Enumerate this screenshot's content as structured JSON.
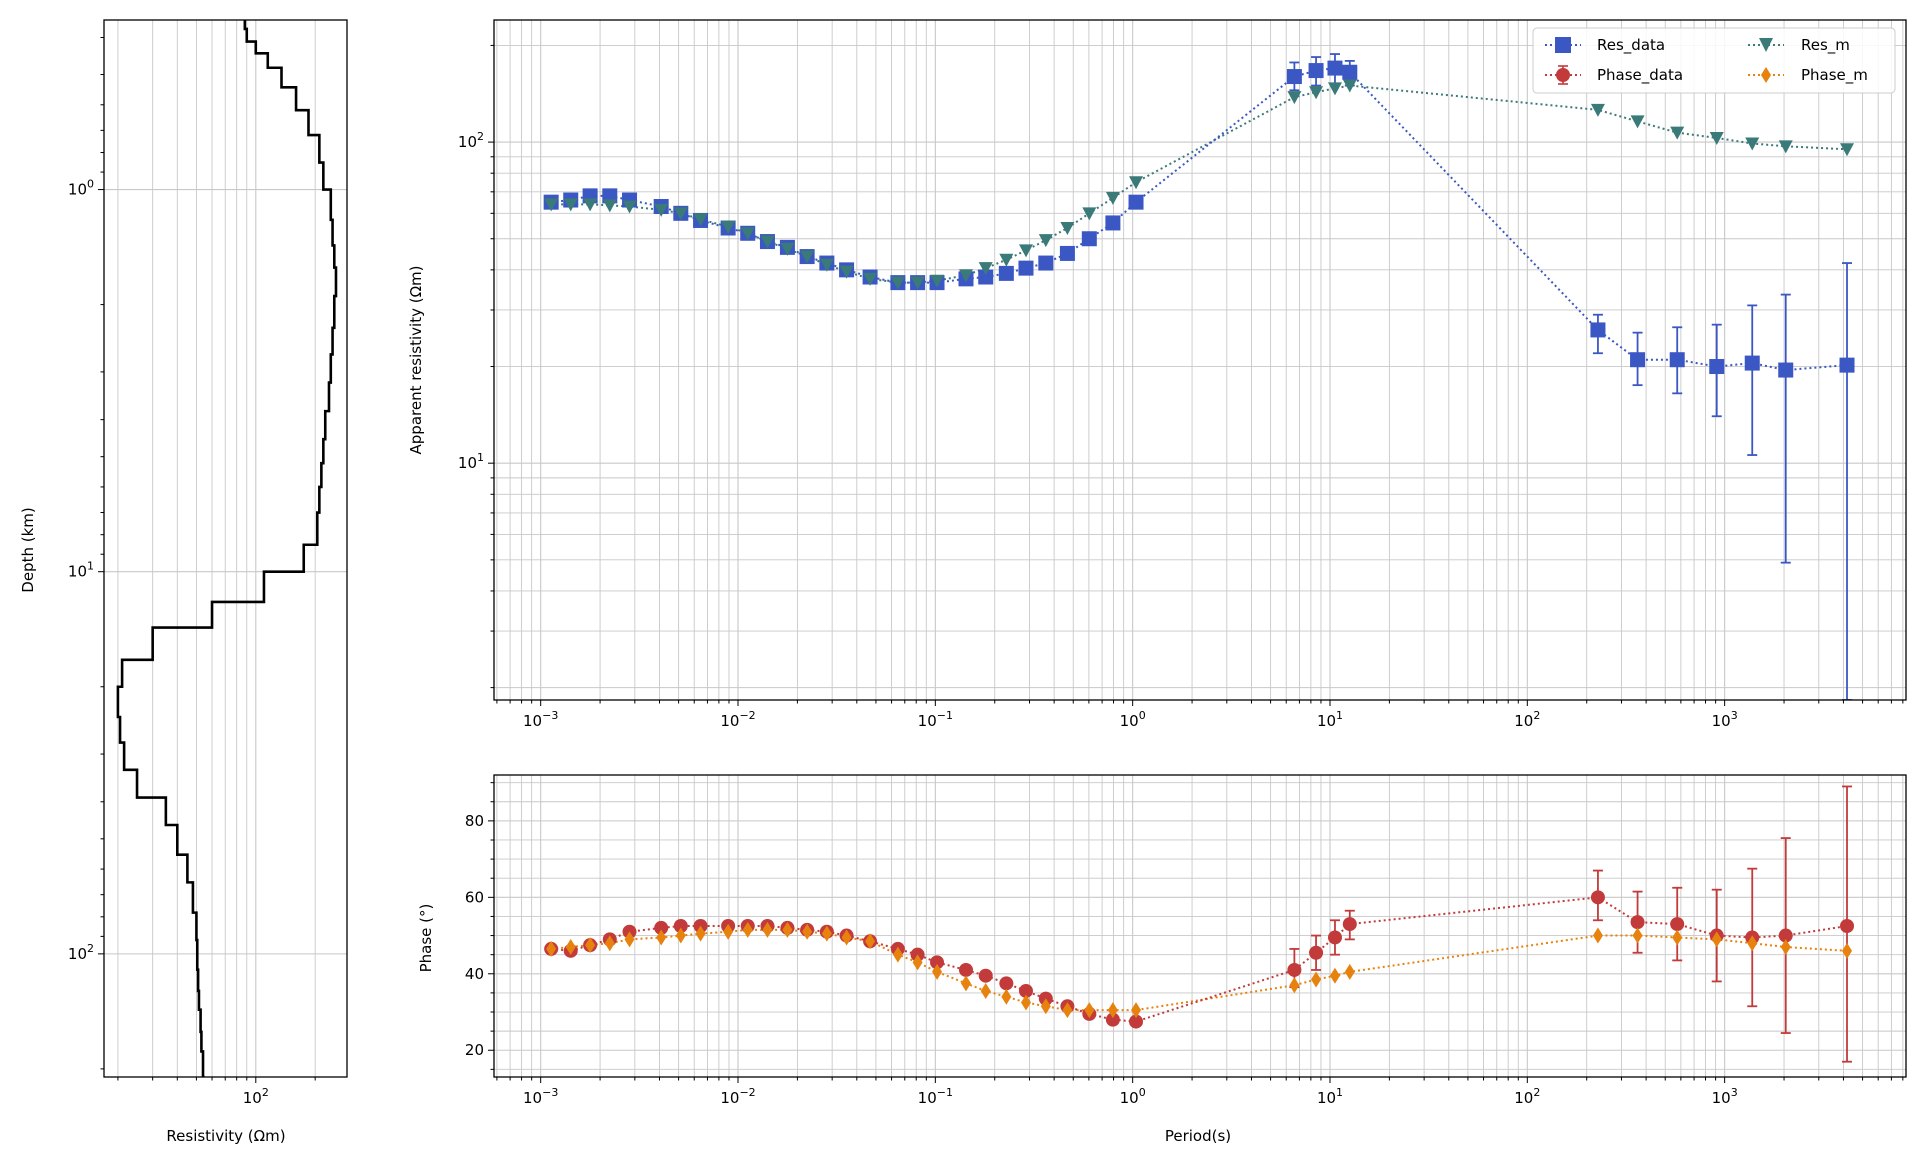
{
  "colors": {
    "res_data": "#3b57c4",
    "res_m": "#3a7a78",
    "phase_data": "#c23a3a",
    "phase_m": "#e8820e",
    "profile": "#000000",
    "grid": "#c8c8c8"
  },
  "chart_data": [
    {
      "name": "resistivity-depth-profile",
      "type": "line",
      "xlabel": "Resistivity (Ωm)",
      "ylabel": "Depth (km)",
      "xscale": "log",
      "yscale": "log",
      "yinverted": true,
      "xlim": [
        17,
        290
      ],
      "ylim": [
        0.36,
        210
      ],
      "xticks": [
        {
          "value": 100,
          "label": "10",
          "exp": "2"
        }
      ],
      "yticks": [
        {
          "value": 1,
          "label": "10",
          "exp": "0"
        },
        {
          "value": 10,
          "label": "10",
          "exp": "1"
        },
        {
          "value": 100,
          "label": "10",
          "exp": "2"
        }
      ],
      "grid": true,
      "series": [
        {
          "style": "step",
          "color": "#000000",
          "resistivity": [
            88,
            90,
            100,
            115,
            135,
            160,
            185,
            210,
            220,
            240,
            245,
            250,
            255,
            250,
            245,
            240,
            235,
            225,
            220,
            215,
            210,
            205,
            175,
            110,
            60,
            30,
            21,
            20,
            20.5,
            21.5,
            25,
            35,
            40,
            45,
            48,
            50,
            50.5,
            51,
            51.5,
            52.5,
            53,
            54,
            55
          ],
          "depth": [
            0.36,
            0.38,
            0.41,
            0.44,
            0.48,
            0.54,
            0.62,
            0.72,
            0.85,
            1.0,
            1.2,
            1.4,
            1.6,
            1.9,
            2.3,
            2.7,
            3.2,
            3.8,
            4.5,
            5.2,
            6.0,
            7.0,
            8.5,
            10.0,
            12.0,
            14.0,
            17.0,
            20.0,
            24.0,
            28.0,
            33.0,
            39.0,
            46.0,
            55.0,
            65.0,
            78.0,
            92.0,
            110.0,
            125.0,
            140.0,
            160.0,
            180.0,
            210.0
          ]
        }
      ]
    },
    {
      "name": "apparent-resistivity",
      "type": "scatter",
      "ylabel": "Apparent resistivity (Ωm)",
      "xscale": "log",
      "yscale": "log",
      "xlim": [
        0.00058,
        8300
      ],
      "ylim": [
        1.83,
        240
      ],
      "xticks": [
        {
          "value": 0.001,
          "label": "10",
          "exp": "−3"
        },
        {
          "value": 0.01,
          "label": "10",
          "exp": "−2"
        },
        {
          "value": 0.1,
          "label": "10",
          "exp": "−1"
        },
        {
          "value": 1,
          "label": "10",
          "exp": "0"
        },
        {
          "value": 10,
          "label": "10",
          "exp": "1"
        },
        {
          "value": 100,
          "label": "10",
          "exp": "2"
        },
        {
          "value": 1000,
          "label": "10",
          "exp": "3"
        }
      ],
      "yticks": [
        {
          "value": 10,
          "label": "10",
          "exp": "1"
        },
        {
          "value": 100,
          "label": "10",
          "exp": "2"
        }
      ],
      "grid": true,
      "legend": {
        "placement": "top-right",
        "columns": 2
      },
      "series": [
        {
          "name": "Res_data",
          "marker": "square",
          "color": "#3b57c4",
          "x": [
            0.00113,
            0.00142,
            0.00178,
            0.00224,
            0.00282,
            0.00408,
            0.00513,
            0.00646,
            0.00891,
            0.0112,
            0.0141,
            0.0178,
            0.0224,
            0.0282,
            0.0355,
            0.0467,
            0.0646,
            0.0813,
            0.102,
            0.143,
            0.18,
            0.229,
            0.288,
            0.363,
            0.467,
            0.603,
            0.794,
            1.04,
            6.6,
            8.5,
            10.6,
            12.6,
            228,
            362,
            575,
            912,
            1380,
            2040,
            4170
          ],
          "y": [
            65,
            66,
            68,
            68,
            66,
            63,
            60,
            57,
            54,
            52,
            49,
            47,
            44,
            42,
            40,
            38,
            36.5,
            36.5,
            36.5,
            37.5,
            38,
            39,
            40.5,
            42,
            45,
            50,
            56,
            65,
            160,
            167,
            170,
            165,
            26,
            21,
            21,
            20,
            20.5,
            19.5,
            20.2
          ],
          "yerr_low": [
            null,
            null,
            null,
            null,
            null,
            null,
            null,
            null,
            null,
            null,
            null,
            null,
            null,
            null,
            null,
            null,
            null,
            null,
            null,
            null,
            null,
            null,
            null,
            null,
            null,
            null,
            null,
            null,
            145,
            150,
            152,
            150,
            22,
            17.5,
            16.5,
            14,
            10.6,
            4.9,
            1.83
          ],
          "yerr_high": [
            null,
            null,
            null,
            null,
            null,
            null,
            null,
            null,
            null,
            null,
            null,
            null,
            null,
            null,
            null,
            null,
            null,
            null,
            null,
            null,
            null,
            null,
            null,
            null,
            null,
            null,
            null,
            null,
            177,
            184,
            188,
            179,
            29,
            25.5,
            26.5,
            27,
            31,
            33.5,
            42
          ]
        },
        {
          "name": "Res_m",
          "marker": "triangle_down",
          "color": "#3a7a78",
          "x": [
            0.00113,
            0.00142,
            0.00178,
            0.00224,
            0.00282,
            0.00408,
            0.00513,
            0.00646,
            0.00891,
            0.0112,
            0.0141,
            0.0178,
            0.0224,
            0.0282,
            0.0355,
            0.0467,
            0.0646,
            0.0813,
            0.102,
            0.143,
            0.18,
            0.229,
            0.288,
            0.363,
            0.467,
            0.603,
            0.794,
            1.04,
            6.6,
            8.5,
            10.6,
            12.6,
            228,
            362,
            575,
            912,
            1380,
            2040,
            4170
          ],
          "y": [
            64,
            64,
            64,
            63.5,
            63,
            61.5,
            60,
            57.5,
            54.5,
            52,
            49,
            46.5,
            44,
            41.5,
            39.5,
            37.5,
            36.5,
            36.5,
            37,
            38.5,
            40.5,
            43,
            46,
            49.5,
            54,
            60,
            67,
            75,
            138,
            143,
            147,
            150,
            126,
            116,
            107,
            103,
            99,
            97,
            95
          ]
        }
      ]
    },
    {
      "name": "phase",
      "type": "scatter",
      "xlabel": "Period(s)",
      "ylabel": "Phase (°)",
      "xscale": "log",
      "yscale": "linear",
      "xlim": [
        0.00058,
        8300
      ],
      "ylim": [
        13,
        92
      ],
      "xticks": [
        {
          "value": 0.001,
          "label": "10",
          "exp": "−3"
        },
        {
          "value": 0.01,
          "label": "10",
          "exp": "−2"
        },
        {
          "value": 0.1,
          "label": "10",
          "exp": "−1"
        },
        {
          "value": 1,
          "label": "10",
          "exp": "0"
        },
        {
          "value": 10,
          "label": "10",
          "exp": "1"
        },
        {
          "value": 100,
          "label": "10",
          "exp": "2"
        },
        {
          "value": 1000,
          "label": "10",
          "exp": "3"
        }
      ],
      "yticks": [
        {
          "value": 20,
          "label": "20"
        },
        {
          "value": 40,
          "label": "40"
        },
        {
          "value": 60,
          "label": "60"
        },
        {
          "value": 80,
          "label": "80"
        }
      ],
      "grid": true,
      "series": [
        {
          "name": "Phase_data",
          "marker": "circle",
          "color": "#c23a3a",
          "x": [
            0.00113,
            0.00142,
            0.00178,
            0.00224,
            0.00282,
            0.00408,
            0.00513,
            0.00646,
            0.00891,
            0.0112,
            0.0141,
            0.0178,
            0.0224,
            0.0282,
            0.0355,
            0.0467,
            0.0646,
            0.0813,
            0.102,
            0.143,
            0.18,
            0.229,
            0.288,
            0.363,
            0.467,
            0.603,
            0.794,
            1.04,
            6.6,
            8.5,
            10.6,
            12.6,
            228,
            362,
            575,
            912,
            1380,
            2040,
            4170
          ],
          "y": [
            46.5,
            46,
            47.5,
            49,
            51,
            52,
            52.5,
            52.5,
            52.5,
            52.5,
            52.5,
            52,
            51.5,
            51,
            50,
            48.5,
            46.5,
            45,
            43,
            41,
            39.5,
            37.5,
            35.5,
            33.5,
            31.5,
            29.5,
            28,
            27.5,
            41,
            45.5,
            49.5,
            53,
            60,
            53.5,
            53,
            50,
            49.5,
            50,
            52.5
          ],
          "yerr_low": [
            null,
            null,
            null,
            null,
            null,
            null,
            null,
            null,
            null,
            null,
            null,
            null,
            null,
            null,
            null,
            null,
            null,
            null,
            null,
            null,
            null,
            null,
            null,
            null,
            null,
            null,
            null,
            null,
            36.5,
            41,
            45,
            49,
            54,
            45.5,
            43.5,
            38,
            31.5,
            24.5,
            17
          ],
          "yerr_high": [
            null,
            null,
            null,
            null,
            null,
            null,
            null,
            null,
            null,
            null,
            null,
            null,
            null,
            null,
            null,
            null,
            null,
            null,
            null,
            null,
            null,
            null,
            null,
            null,
            null,
            null,
            null,
            null,
            46.5,
            50,
            54,
            56.5,
            67,
            61.5,
            62.5,
            62,
            67.5,
            75.5,
            89
          ]
        },
        {
          "name": "Phase_m",
          "marker": "diamond",
          "color": "#e8820e",
          "x": [
            0.00113,
            0.00142,
            0.00178,
            0.00224,
            0.00282,
            0.00408,
            0.00513,
            0.00646,
            0.00891,
            0.0112,
            0.0141,
            0.0178,
            0.0224,
            0.0282,
            0.0355,
            0.0467,
            0.0646,
            0.0813,
            0.102,
            0.143,
            0.18,
            0.229,
            0.288,
            0.363,
            0.467,
            0.603,
            0.794,
            1.04,
            6.6,
            8.5,
            10.6,
            12.6,
            228,
            362,
            575,
            912,
            1380,
            2040,
            4170
          ],
          "y": [
            46.5,
            47,
            47.5,
            48,
            49,
            49.5,
            50,
            50.5,
            51,
            51.5,
            51.5,
            51.5,
            51,
            50.5,
            49.5,
            48.5,
            45,
            43,
            40.5,
            37.5,
            35.5,
            34,
            32.5,
            31.5,
            30.5,
            30.5,
            30.5,
            30.5,
            37,
            38.5,
            39.5,
            40.5,
            50,
            50,
            49.5,
            49,
            48,
            47,
            46
          ]
        }
      ]
    }
  ]
}
